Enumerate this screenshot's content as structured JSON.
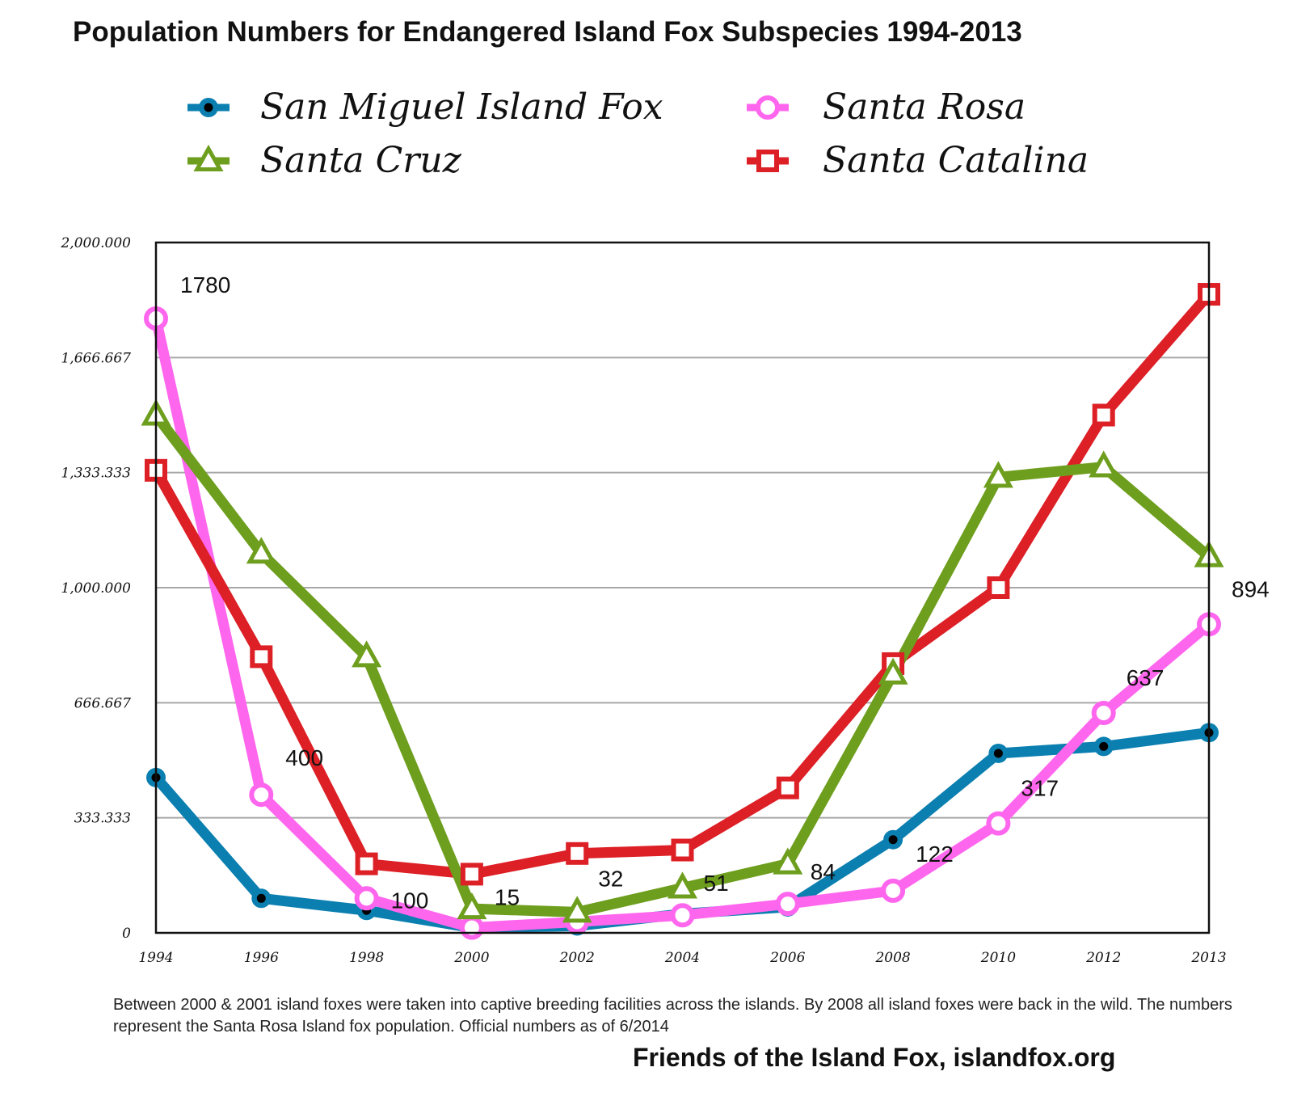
{
  "chart_data": {
    "type": "line",
    "title": "Population Numbers for Endangered Island Fox Subspecies 1994-2013",
    "categories": [
      "1994",
      "1996",
      "1998",
      "2000",
      "2002",
      "2004",
      "2006",
      "2008",
      "2010",
      "2012",
      "2013"
    ],
    "ylim": [
      0,
      2000
    ],
    "y_ticks": [
      0,
      333.333,
      666.667,
      1000,
      1333.333,
      1666.667,
      2000
    ],
    "y_tick_labels": [
      "0",
      "333.333",
      "666.667",
      "1,000.000",
      "1,333.333",
      "1,666.667",
      "2,000.000"
    ],
    "grid": true,
    "legend_position": "top",
    "series": [
      {
        "name": "San Miguel Island Fox",
        "color": "#0a7fb0",
        "marker": "circle-dot",
        "values": [
          450,
          100,
          65,
          15,
          20,
          55,
          75,
          270,
          520,
          540,
          580
        ]
      },
      {
        "name": "Santa Rosa",
        "color": "#ff66ee",
        "marker": "circle-open",
        "values": [
          1780,
          400,
          100,
          15,
          32,
          51,
          84,
          122,
          317,
          637,
          894
        ]
      },
      {
        "name": "Santa Cruz",
        "color": "#6e9e1e",
        "marker": "triangle-open",
        "values": [
          1500,
          1100,
          800,
          70,
          60,
          130,
          200,
          750,
          1320,
          1350,
          1090
        ]
      },
      {
        "name": "Santa Catalina",
        "color": "#dd1f26",
        "marker": "square-open",
        "values": [
          1340,
          800,
          200,
          170,
          230,
          240,
          420,
          780,
          1000,
          1500,
          1850
        ]
      }
    ],
    "data_labels": [
      {
        "series": "Santa Rosa",
        "category": "1994",
        "text": "1780"
      },
      {
        "series": "Santa Rosa",
        "category": "1996",
        "text": "400"
      },
      {
        "series": "Santa Rosa",
        "category": "1998",
        "text": "100"
      },
      {
        "series": "Santa Rosa",
        "category": "2000",
        "text": "15"
      },
      {
        "series": "Santa Rosa",
        "category": "2002",
        "text": "32"
      },
      {
        "series": "Santa Rosa",
        "category": "2004",
        "text": "51"
      },
      {
        "series": "Santa Rosa",
        "category": "2006",
        "text": "84"
      },
      {
        "series": "Santa Rosa",
        "category": "2008",
        "text": "122"
      },
      {
        "series": "Santa Rosa",
        "category": "2010",
        "text": "317"
      },
      {
        "series": "Santa Rosa",
        "category": "2012",
        "text": "637"
      },
      {
        "series": "Santa Rosa",
        "category": "2013",
        "text": "894"
      }
    ]
  },
  "footnote": "Between 2000 & 2001 island foxes were taken into captive breeding facilities across the islands. By 2008 all island foxes were back in the wild. The numbers represent the Santa Rosa Island fox population. Official numbers as of 6/2014",
  "credit": "Friends of the Island Fox, islandfox.org"
}
